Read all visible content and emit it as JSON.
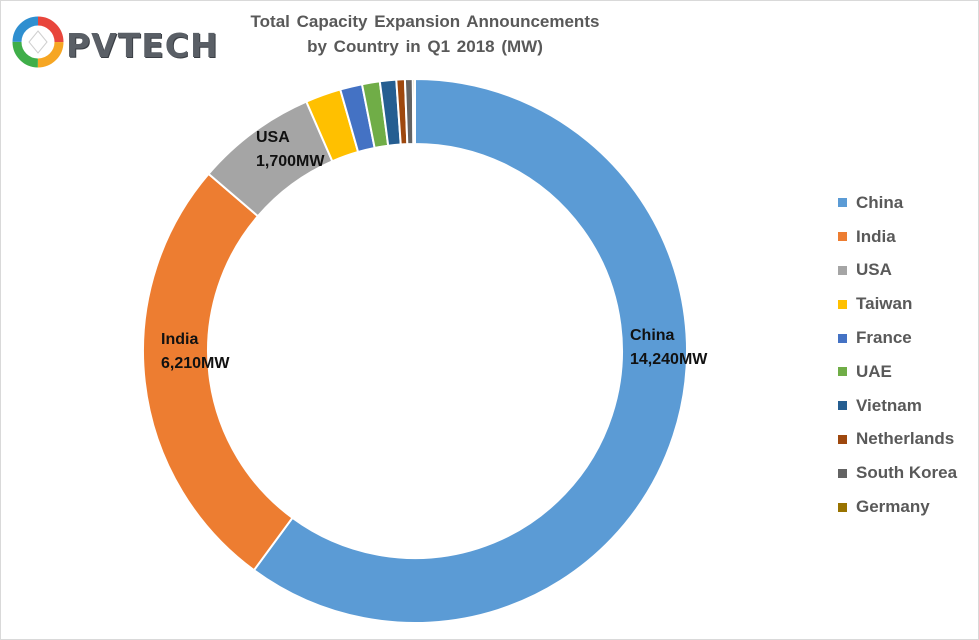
{
  "logo": {
    "text": "PVTECH",
    "colors": [
      "#e8463c",
      "#f6a623",
      "#3fae49",
      "#2f8fd0"
    ]
  },
  "chart_data": {
    "type": "pie",
    "style": "donut",
    "title": [
      "Total Capacity Expansion Announcements",
      "by Country in Q1 2018 (MW)"
    ],
    "legend_position": "right",
    "unit": "MW",
    "series": [
      {
        "name": "China",
        "value": 14240,
        "color": "#5b9bd5",
        "label": "China",
        "value_label": "14,240MW"
      },
      {
        "name": "India",
        "value": 6210,
        "color": "#ed7d31",
        "label": "India",
        "value_label": "6,210MW"
      },
      {
        "name": "USA",
        "value": 1700,
        "color": "#a5a5a5",
        "label": "USA",
        "value_label": "1,700MW"
      },
      {
        "name": "Taiwan",
        "value": 500,
        "color": "#ffc000"
      },
      {
        "name": "France",
        "value": 310,
        "color": "#4472c4"
      },
      {
        "name": "UAE",
        "value": 250,
        "color": "#70ad47"
      },
      {
        "name": "Vietnam",
        "value": 230,
        "color": "#255e91"
      },
      {
        "name": "Netherlands",
        "value": 120,
        "color": "#9e480e"
      },
      {
        "name": "South Korea",
        "value": 110,
        "color": "#636363"
      },
      {
        "name": "Germany",
        "value": 30,
        "color": "#997300"
      }
    ]
  }
}
